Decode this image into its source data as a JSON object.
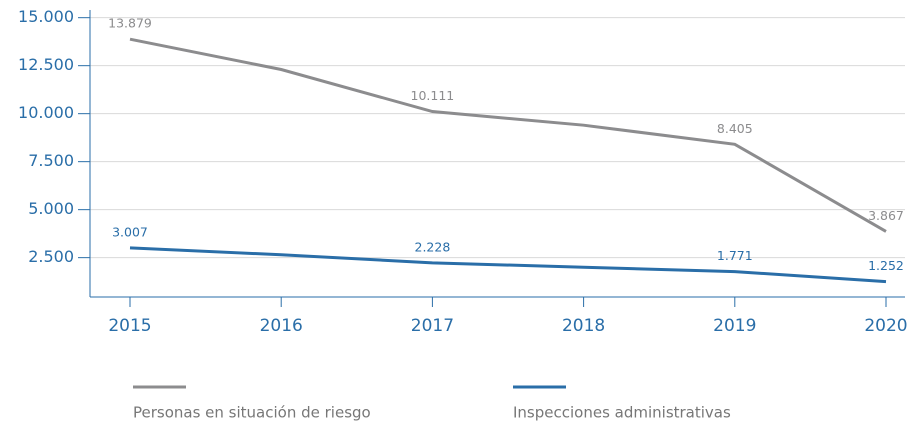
{
  "chart_data": {
    "type": "line",
    "categories": [
      "2015",
      "2016",
      "2017",
      "2018",
      "2019",
      "2020"
    ],
    "series": [
      {
        "name": "Personas en situación de riesgo",
        "color": "#8c8c8e",
        "values": [
          13879,
          12300,
          10111,
          9400,
          8405,
          3867
        ],
        "value_labels": [
          "13.879",
          null,
          "10.111",
          null,
          "8.405",
          "3.867"
        ]
      },
      {
        "name": "Inspecciones administrativas",
        "color": "#2a6ea8",
        "values": [
          3007,
          2650,
          2228,
          2000,
          1771,
          1252
        ],
        "value_labels": [
          "3.007",
          null,
          "2.228",
          null,
          "1.771",
          "1.252"
        ]
      }
    ],
    "ylim": [
      450,
      15400
    ],
    "yticks": [
      {
        "value": 2500,
        "label": "2.500"
      },
      {
        "value": 5000,
        "label": "5.000"
      },
      {
        "value": 7500,
        "label": "7.500"
      },
      {
        "value": 10000,
        "label": "10.000"
      },
      {
        "value": 12500,
        "label": "12.500"
      },
      {
        "value": 15000,
        "label": "15.000"
      }
    ],
    "grid": true
  }
}
